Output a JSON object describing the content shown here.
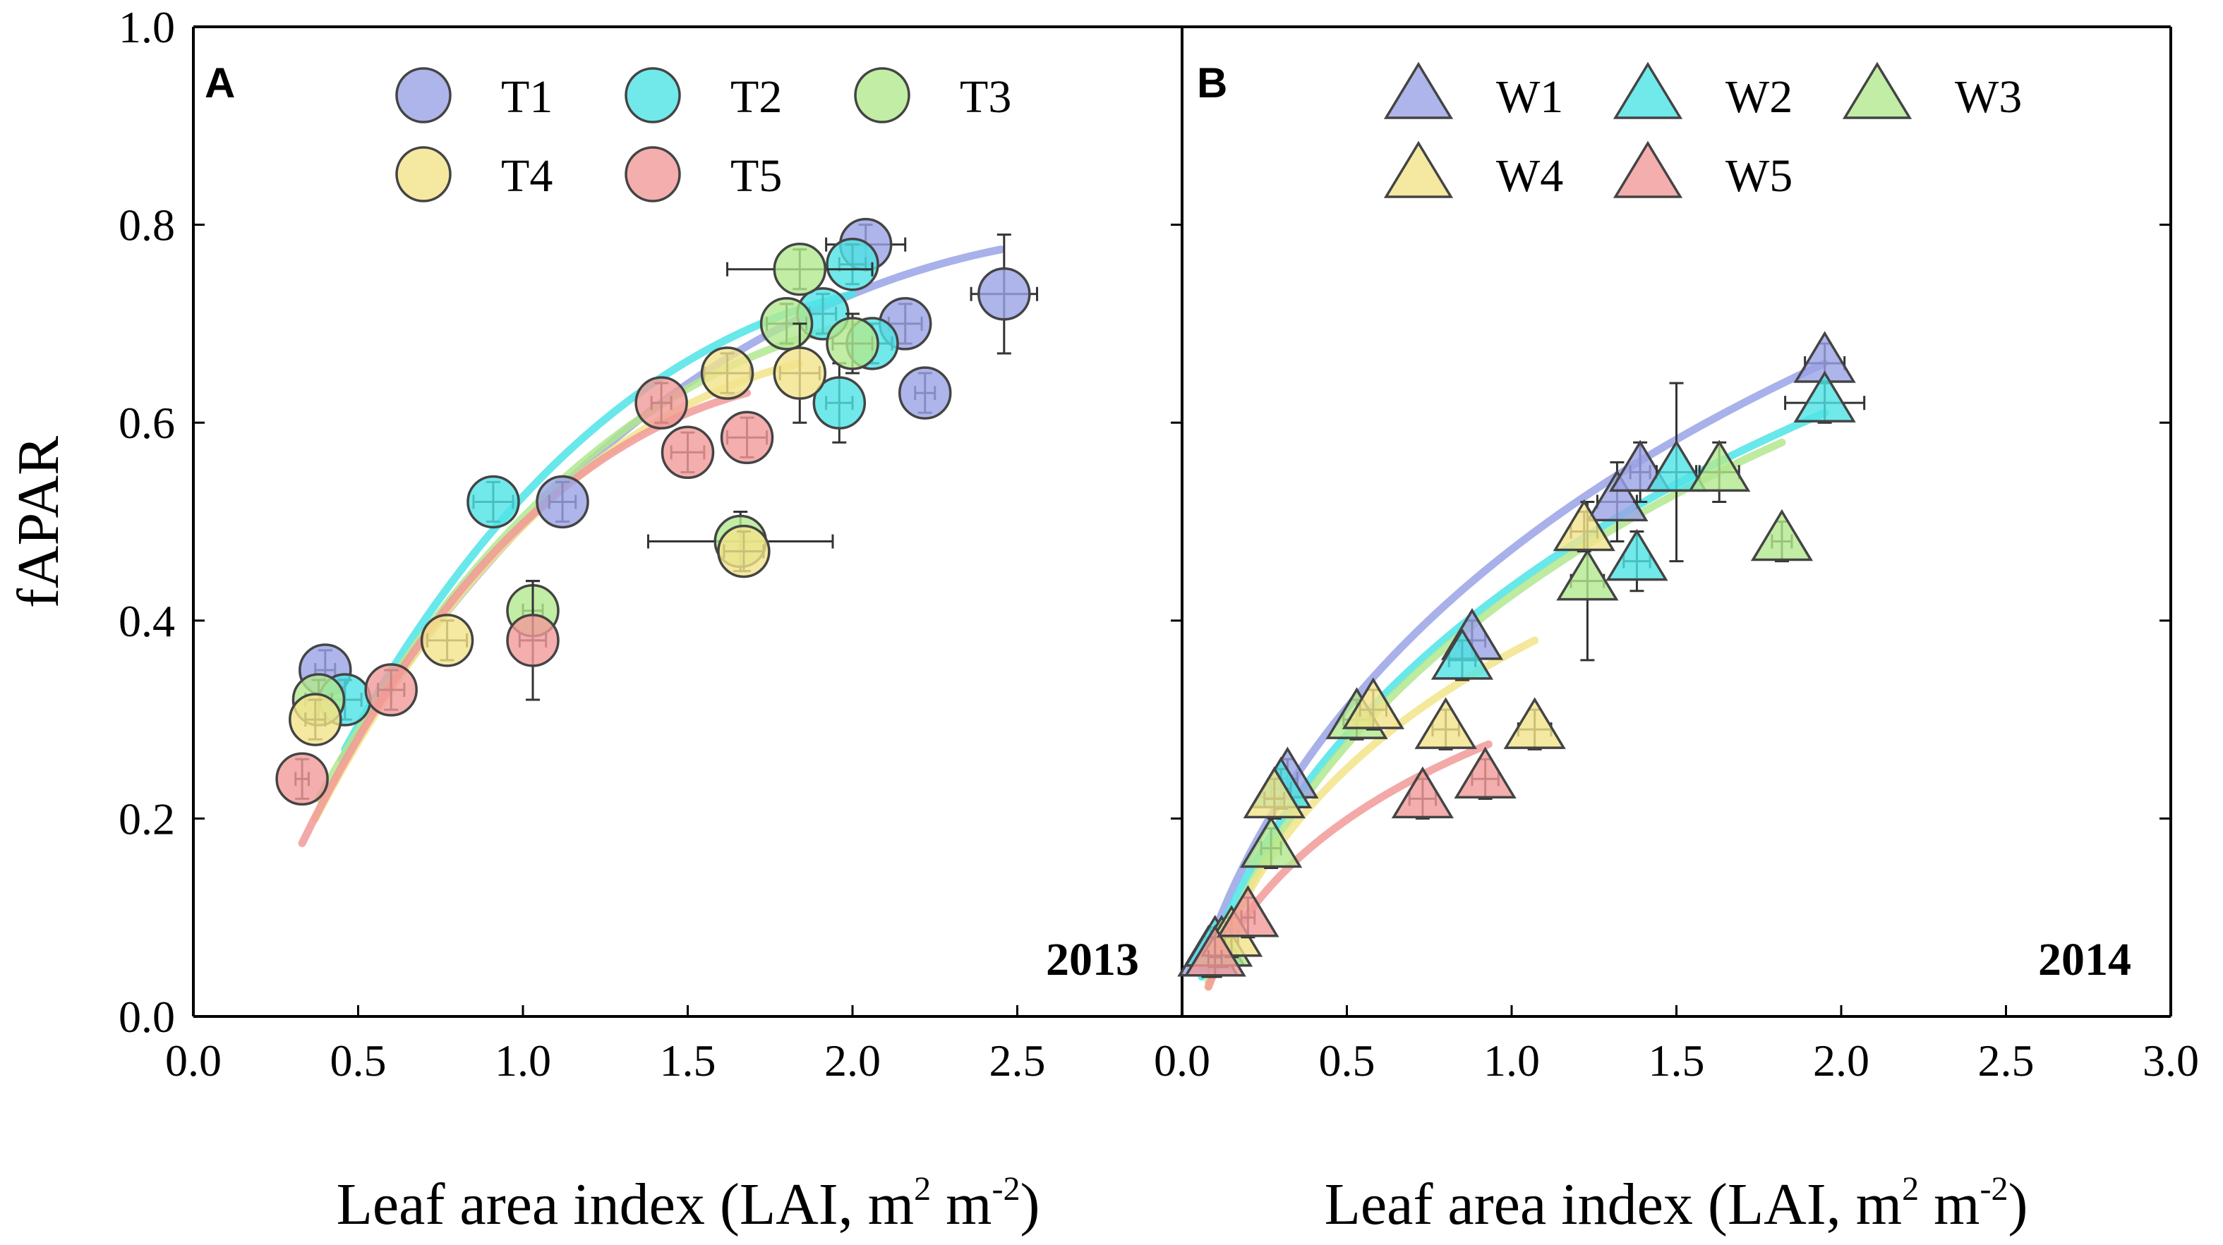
{
  "chart_data": [
    {
      "type": "scatter",
      "panel": "A",
      "year": "2013",
      "xlabel": "Leaf area index (LAI, m",
      "ylabel": "fAPAR",
      "xlim": [
        0.0,
        3.0
      ],
      "ylim": [
        0.0,
        1.0
      ],
      "xticks": [
        "0.0",
        "0.5",
        "1.0",
        "1.5",
        "2.0",
        "2.5"
      ],
      "yticks": [
        "0.0",
        "0.2",
        "0.4",
        "0.6",
        "0.8",
        "1.0"
      ],
      "marker": "circle",
      "series": [
        {
          "name": "T1",
          "color": "#9aa3e6",
          "points": [
            [
              0.4,
              0.35,
              0.03,
              0.02
            ],
            [
              1.12,
              0.52,
              0.04,
              0.02
            ],
            [
              2.04,
              0.78,
              0.12,
              0.02
            ],
            [
              2.16,
              0.7,
              0.05,
              0.02
            ],
            [
              2.22,
              0.63,
              0.03,
              0.02
            ],
            [
              2.46,
              0.73,
              0.1,
              0.06
            ]
          ],
          "fit": [
            [
              0.45,
              0.26
            ],
            [
              2.45,
              0.775
            ]
          ]
        },
        {
          "name": "T2",
          "color": "#4de4e6",
          "points": [
            [
              0.46,
              0.32,
              0.05,
              0.02
            ],
            [
              0.91,
              0.52,
              0.06,
              0.02
            ],
            [
              1.91,
              0.71,
              0.04,
              0.02
            ],
            [
              2.0,
              0.76,
              0.04,
              0.02
            ],
            [
              2.06,
              0.68,
              0.06,
              0.02
            ],
            [
              1.96,
              0.62,
              0.04,
              0.04
            ]
          ],
          "fit": [
            [
              0.46,
              0.27
            ],
            [
              2.0,
              0.73
            ]
          ]
        },
        {
          "name": "T3",
          "color": "#b2e88e",
          "points": [
            [
              0.38,
              0.32,
              0.04,
              0.02
            ],
            [
              1.03,
              0.41,
              0.03,
              0.03
            ],
            [
              1.66,
              0.48,
              0.28,
              0.03
            ],
            [
              1.8,
              0.7,
              0.06,
              0.02
            ],
            [
              1.84,
              0.755,
              0.22,
              0.02
            ],
            [
              2.0,
              0.68,
              0.06,
              0.03
            ]
          ],
          "fit": [
            [
              0.38,
              0.22
            ],
            [
              2.0,
              0.7
            ]
          ]
        },
        {
          "name": "T4",
          "color": "#f2e48a",
          "points": [
            [
              0.37,
              0.3,
              0.03,
              0.02
            ],
            [
              0.77,
              0.38,
              0.06,
              0.02
            ],
            [
              1.62,
              0.65,
              0.07,
              0.02
            ],
            [
              1.84,
              0.65,
              0.06,
              0.05
            ],
            [
              1.67,
              0.47,
              0.06,
              0.02
            ]
          ],
          "fit": [
            [
              0.37,
              0.2
            ],
            [
              1.84,
              0.66
            ]
          ]
        },
        {
          "name": "T5",
          "color": "#f19a98",
          "points": [
            [
              0.33,
              0.24,
              0.02,
              0.02
            ],
            [
              0.6,
              0.33,
              0.04,
              0.02
            ],
            [
              1.03,
              0.38,
              0.04,
              0.06
            ],
            [
              1.42,
              0.62,
              0.03,
              0.02
            ],
            [
              1.5,
              0.57,
              0.05,
              0.02
            ],
            [
              1.68,
              0.585,
              0.06,
              0.02
            ]
          ],
          "fit": [
            [
              0.33,
              0.175
            ],
            [
              1.68,
              0.63
            ]
          ]
        }
      ]
    },
    {
      "type": "scatter",
      "panel": "B",
      "year": "2014",
      "xlabel": "Leaf area index (LAI, m",
      "ylabel": "",
      "xlim": [
        0.0,
        3.0
      ],
      "ylim": [
        0.0,
        1.0
      ],
      "xticks": [
        "0.0",
        "0.5",
        "1.0",
        "1.5",
        "2.0",
        "2.5",
        "3.0"
      ],
      "yticks": [],
      "marker": "triangle",
      "series": [
        {
          "name": "W1",
          "color": "#9aa3e6",
          "points": [
            [
              0.08,
              0.06,
              0.02,
              0.02
            ],
            [
              0.32,
              0.24,
              0.03,
              0.02
            ],
            [
              0.88,
              0.38,
              0.04,
              0.02
            ],
            [
              1.32,
              0.52,
              0.06,
              0.04
            ],
            [
              1.39,
              0.55,
              0.03,
              0.03
            ],
            [
              1.95,
              0.66,
              0.06,
              0.02
            ]
          ],
          "fit": [
            [
              0.06,
              0.05
            ],
            [
              1.95,
              0.66
            ]
          ]
        },
        {
          "name": "W2",
          "color": "#4de4e6",
          "points": [
            [
              0.1,
              0.07,
              0.02,
              0.02
            ],
            [
              0.3,
              0.23,
              0.03,
              0.02
            ],
            [
              0.85,
              0.36,
              0.04,
              0.02
            ],
            [
              1.38,
              0.46,
              0.04,
              0.03
            ],
            [
              1.5,
              0.55,
              0.06,
              0.09
            ],
            [
              1.95,
              0.62,
              0.12,
              0.02
            ]
          ],
          "fit": [
            [
              0.06,
              0.04
            ],
            [
              1.95,
              0.61
            ]
          ]
        },
        {
          "name": "W3",
          "color": "#b2e88e",
          "points": [
            [
              0.12,
              0.07,
              0.02,
              0.02
            ],
            [
              0.27,
              0.17,
              0.03,
              0.02
            ],
            [
              0.53,
              0.3,
              0.04,
              0.02
            ],
            [
              1.23,
              0.44,
              0.05,
              0.08
            ],
            [
              1.63,
              0.55,
              0.06,
              0.03
            ],
            [
              1.82,
              0.48,
              0.03,
              0.02
            ]
          ],
          "fit": [
            [
              0.08,
              0.035
            ],
            [
              1.82,
              0.58
            ]
          ]
        },
        {
          "name": "W4",
          "color": "#f2e48a",
          "points": [
            [
              0.15,
              0.08,
              0.02,
              0.02
            ],
            [
              0.28,
              0.22,
              0.03,
              0.02
            ],
            [
              0.58,
              0.31,
              0.04,
              0.02
            ],
            [
              0.8,
              0.29,
              0.04,
              0.02
            ],
            [
              1.07,
              0.29,
              0.05,
              0.02
            ],
            [
              1.22,
              0.49,
              0.04,
              0.02
            ]
          ],
          "fit": [
            [
              0.08,
              0.03
            ],
            [
              1.07,
              0.38
            ]
          ]
        },
        {
          "name": "W5",
          "color": "#f19a98",
          "points": [
            [
              0.1,
              0.06,
              0.02,
              0.02
            ],
            [
              0.2,
              0.1,
              0.02,
              0.02
            ],
            [
              0.73,
              0.22,
              0.04,
              0.02
            ],
            [
              0.92,
              0.24,
              0.04,
              0.02
            ]
          ],
          "fit": [
            [
              0.08,
              0.03
            ],
            [
              0.93,
              0.275
            ]
          ]
        }
      ]
    }
  ]
}
